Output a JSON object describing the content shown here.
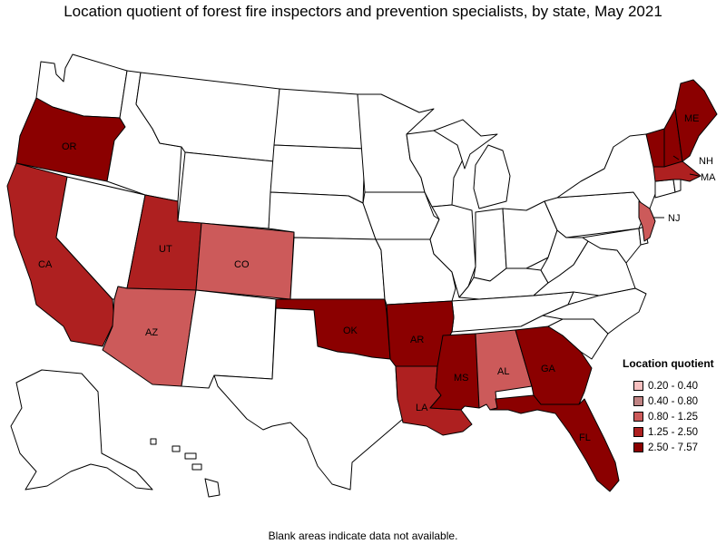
{
  "title": "Location quotient of forest fire inspectors and prevention specialists, by state, May 2021",
  "footnote": "Blank areas indicate data not available.",
  "legend": {
    "title": "Location quotient",
    "items": [
      {
        "label": "0.20 - 0.40",
        "color": "#f7c0c0"
      },
      {
        "label": "0.40 - 0.80",
        "color": "#c08484"
      },
      {
        "label": "0.80 - 1.25",
        "color": "#cc5a5a"
      },
      {
        "label": "1.25 - 2.50",
        "color": "#ae2020"
      },
      {
        "label": "2.50 - 7.57",
        "color": "#8b0000"
      }
    ]
  },
  "colors": {
    "blank": "#ffffff",
    "border": "#000000"
  },
  "chart_data": {
    "type": "choropleth",
    "region": "United States",
    "value_label": "Location quotient",
    "states": [
      {
        "state": "OR",
        "class": "2.50 - 7.57"
      },
      {
        "state": "CA",
        "class": "1.25 - 2.50"
      },
      {
        "state": "UT",
        "class": "1.25 - 2.50"
      },
      {
        "state": "CO",
        "class": "0.80 - 1.25"
      },
      {
        "state": "AZ",
        "class": "0.80 - 1.25"
      },
      {
        "state": "OK",
        "class": "2.50 - 7.57"
      },
      {
        "state": "AR",
        "class": "2.50 - 7.57"
      },
      {
        "state": "LA",
        "class": "1.25 - 2.50"
      },
      {
        "state": "MS",
        "class": "2.50 - 7.57"
      },
      {
        "state": "AL",
        "class": "0.80 - 1.25"
      },
      {
        "state": "GA",
        "class": "2.50 - 7.57"
      },
      {
        "state": "FL",
        "class": "2.50 - 7.57"
      },
      {
        "state": "ME",
        "class": "2.50 - 7.57"
      },
      {
        "state": "NH",
        "class": "2.50 - 7.57"
      },
      {
        "state": "VT",
        "class": "2.50 - 7.57"
      },
      {
        "state": "MA",
        "class": "1.25 - 2.50"
      },
      {
        "state": "NJ",
        "class": "0.80 - 1.25"
      }
    ],
    "labels": [
      "OR",
      "CA",
      "UT",
      "CO",
      "AZ",
      "OK",
      "AR",
      "LA",
      "MS",
      "AL",
      "GA",
      "FL",
      "ME",
      "NH",
      "MA",
      "NJ"
    ]
  }
}
